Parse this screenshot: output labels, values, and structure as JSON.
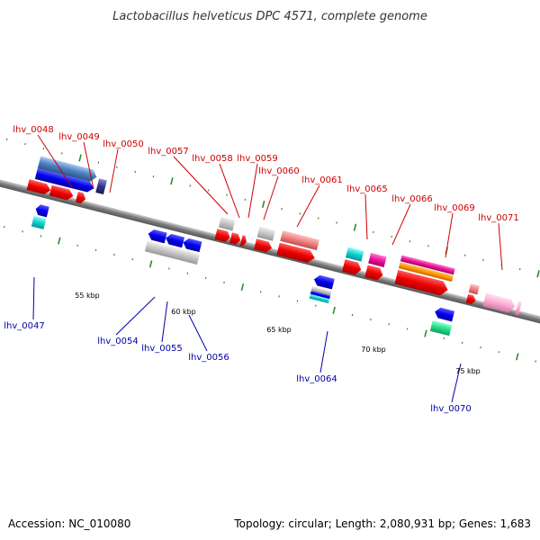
{
  "title": "Lactobacillus helveticus DPC 4571, complete genome",
  "footer": {
    "accession": "Accession: NC_010080",
    "stats": "Topology: circular; Length: 2,080,931 bp; Genes: 1,683"
  },
  "scale_labels": [
    "55 kbp",
    "60 kbp",
    "65 kbp",
    "70 kbp",
    "75 kbp"
  ],
  "gene_labels": {
    "top": [
      "lhv_0048",
      "lhv_0049",
      "lhv_0050",
      "lhv_0057",
      "lhv_0058",
      "lhv_0059",
      "lhv_0060",
      "lhv_0061",
      "lhv_0065",
      "lhv_0066",
      "lhv_0069",
      "lhv_0071"
    ],
    "bottom": [
      "lhv_0047",
      "lhv_0054",
      "lhv_0055",
      "lhv_0056",
      "lhv_0064",
      "lhv_0070"
    ]
  },
  "colors": {
    "backbone": "#888888",
    "top_label": "#cc0000",
    "bottom_label": "#0000aa",
    "leader": "#cc0000",
    "leader_bottom": "#0000aa",
    "tick": "#2e8b2e"
  }
}
